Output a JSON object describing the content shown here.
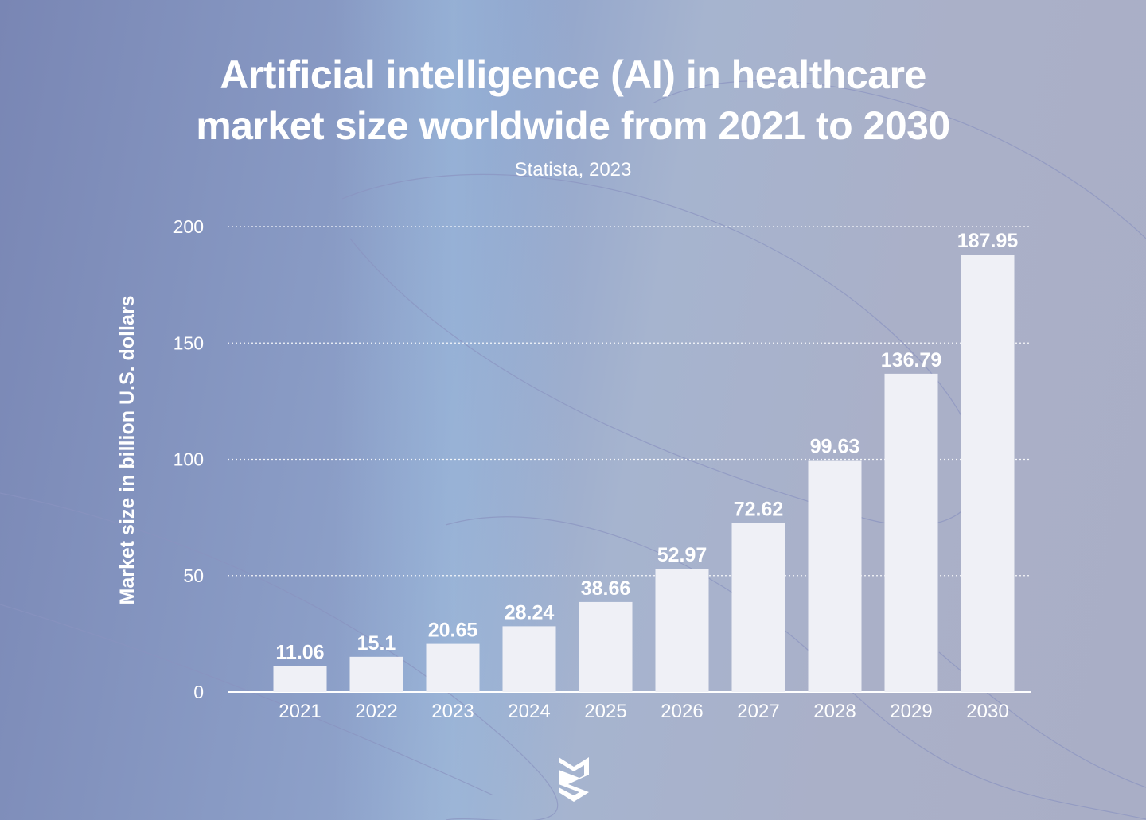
{
  "title_line1": "Artificial intelligence (AI) in healthcare",
  "title_line2": "market size worldwide from 2021 to 2030",
  "subtitle": "Statista, 2023",
  "colors": {
    "bar": "#eff0f6",
    "text": "#ffffff",
    "grid": "#ffffff"
  },
  "icons": {
    "logo": "brand-logo-icon"
  },
  "chart_data": {
    "type": "bar",
    "title": "Artificial intelligence (AI) in healthcare market size worldwide from 2021 to 2030",
    "subtitle": "Statista, 2023",
    "xlabel": "",
    "ylabel": "Market size in billion U.S. dollars",
    "categories": [
      "2021",
      "2022",
      "2023",
      "2024",
      "2025",
      "2026",
      "2027",
      "2028",
      "2029",
      "2030"
    ],
    "values": [
      11.06,
      15.1,
      20.65,
      28.24,
      38.66,
      52.97,
      72.62,
      99.63,
      136.79,
      187.95
    ],
    "value_labels": [
      "11.06",
      "15.1",
      "20.65",
      "28.24",
      "38.66",
      "52.97",
      "72.62",
      "99.63",
      "136.79",
      "187.95"
    ],
    "ylim": [
      0,
      200
    ],
    "yticks": [
      0,
      50,
      100,
      150,
      200
    ],
    "ytick_labels": [
      "0",
      "50",
      "100",
      "150",
      "200"
    ],
    "grid": true
  }
}
